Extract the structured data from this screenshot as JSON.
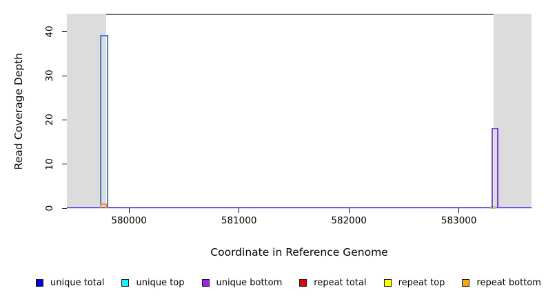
{
  "chart_data": {
    "type": "step-line",
    "title": "",
    "xlabel": "Coordinate in Reference Genome",
    "ylabel": "Read Coverage Depth",
    "xlim": [
      579435,
      583660
    ],
    "ylim": [
      0,
      44
    ],
    "x_ticks": [
      580000,
      581000,
      582000,
      583000
    ],
    "y_ticks": [
      0,
      10,
      20,
      30,
      40
    ],
    "grid": false,
    "legend_position": "bottom",
    "plot_border_color": "#707070",
    "shaded_region_color": "#dcdcdc",
    "shaded_regions": [
      {
        "x0": 579435,
        "x1": 579792
      },
      {
        "x0": 583317,
        "x1": 583660
      }
    ],
    "baseline": {
      "depth": 0,
      "color_top": "#5555dd",
      "color_bottom": "#8866ee"
    },
    "series": [
      {
        "name": "unique total",
        "legend_color": "#0000ee",
        "line_color": "#4a78f2",
        "segments": [
          {
            "x0": 579742,
            "x1": 579803,
            "depth": 39,
            "style": "outline"
          }
        ]
      },
      {
        "name": "unique top",
        "legend_color": "#00ffff",
        "line_color": "#00e5e5",
        "segments": []
      },
      {
        "name": "unique bottom",
        "legend_color": "#a020f0",
        "line_color": "#7a42ee",
        "segments": [
          {
            "x0": 583305,
            "x1": 583355,
            "depth": 18,
            "style": "outline"
          }
        ]
      },
      {
        "name": "repeat total",
        "legend_color": "#ee0000",
        "line_color": "#ee0000",
        "segments": []
      },
      {
        "name": "repeat top",
        "legend_color": "#ffff00",
        "line_color": "#a9d977",
        "segments": [
          {
            "x0": 583283,
            "x1": 583338,
            "depth": 0.4,
            "style": "fill"
          }
        ]
      },
      {
        "name": "repeat bottom",
        "legend_color": "#ffa500",
        "line_color": "#ff8c28",
        "segments": [
          {
            "x0": 579744,
            "x1": 579790,
            "depth": 1,
            "style": "outline"
          }
        ]
      }
    ]
  }
}
